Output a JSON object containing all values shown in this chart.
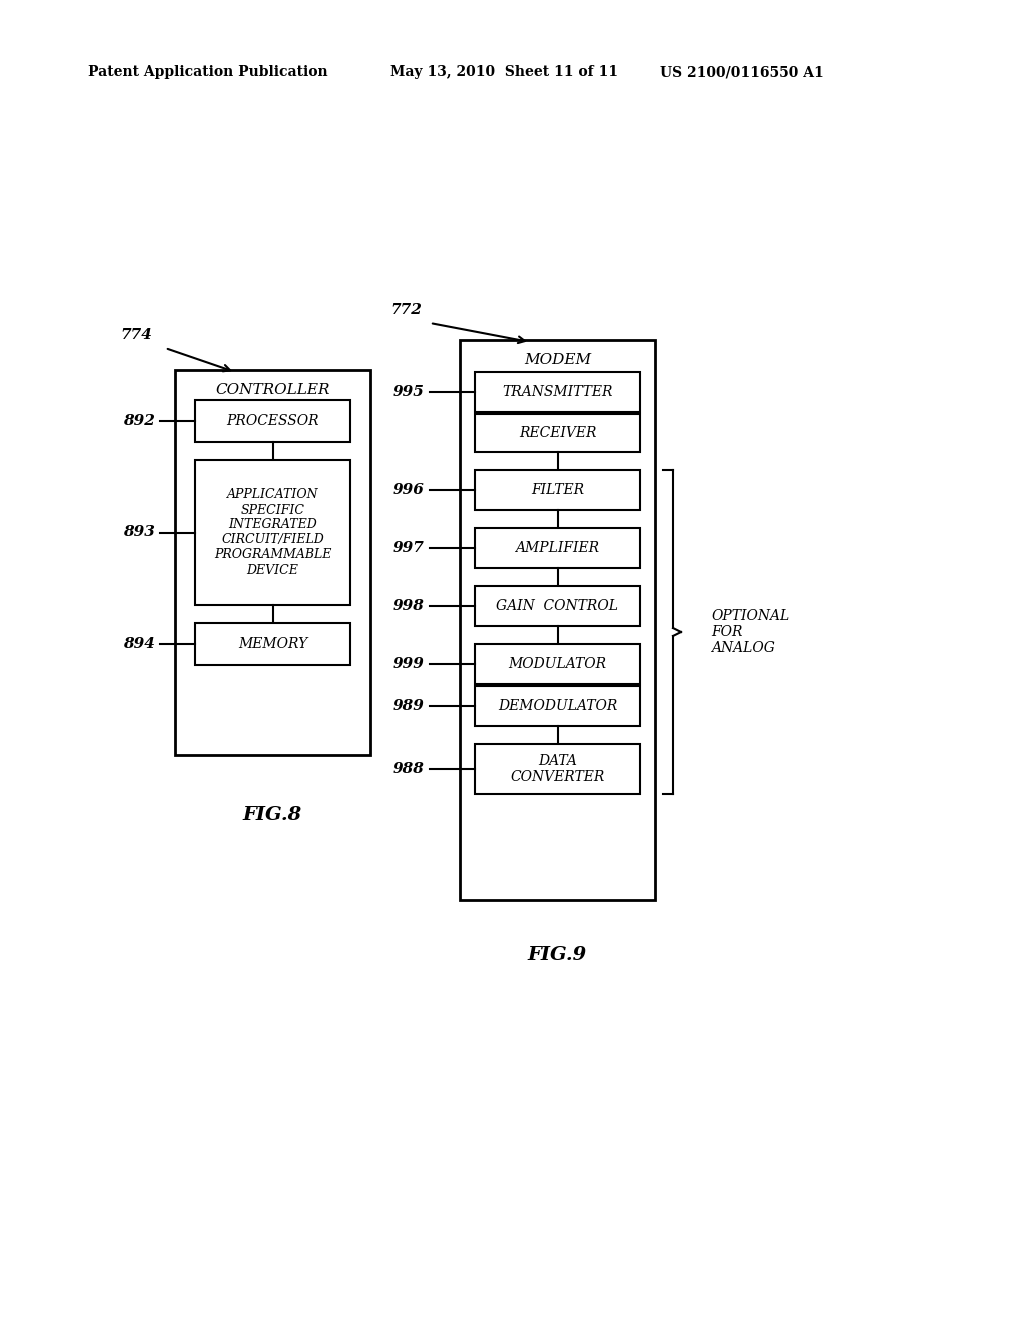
{
  "bg_color": "#ffffff",
  "header_text_left": "Patent Application Publication",
  "header_text_mid": "May 13, 2010  Sheet 11 of 11",
  "header_text_right": "US 2100/0116550 A1",
  "fig8_label": "FIG.8",
  "fig9_label": "FIG.9",
  "fig8_ref": "774",
  "fig9_ref": "772",
  "controller_title": "CONTROLLER",
  "optional_text": "OPTIONAL\nFOR\nANALOG"
}
